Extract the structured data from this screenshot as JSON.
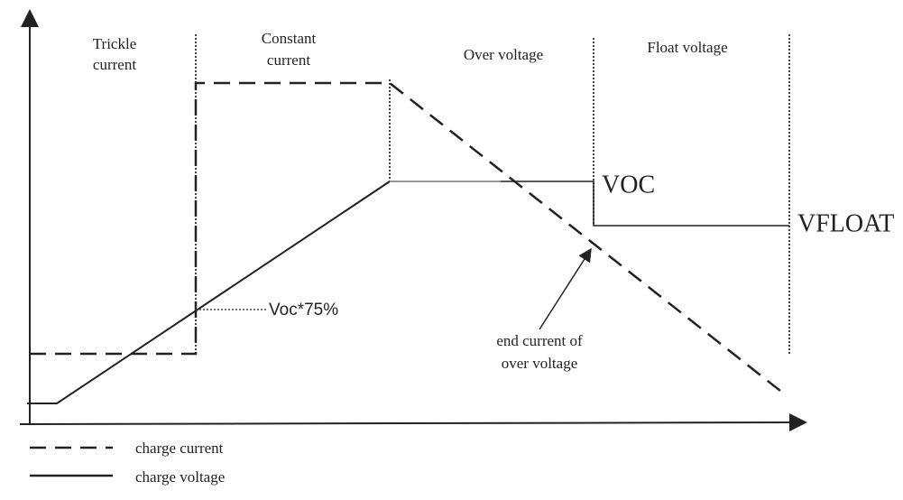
{
  "phases": [
    [
      "Trickle",
      "current"
    ],
    [
      "Constant",
      "current"
    ],
    [
      "Over voltage"
    ],
    [
      "Float voltage"
    ]
  ],
  "levels": {
    "voc": "VOC",
    "vfloat": "VFLOAT",
    "voc75": "Voc*75%"
  },
  "annotation": [
    "end current of",
    "over voltage"
  ],
  "legend": [
    "charge current",
    "charge voltage"
  ]
}
